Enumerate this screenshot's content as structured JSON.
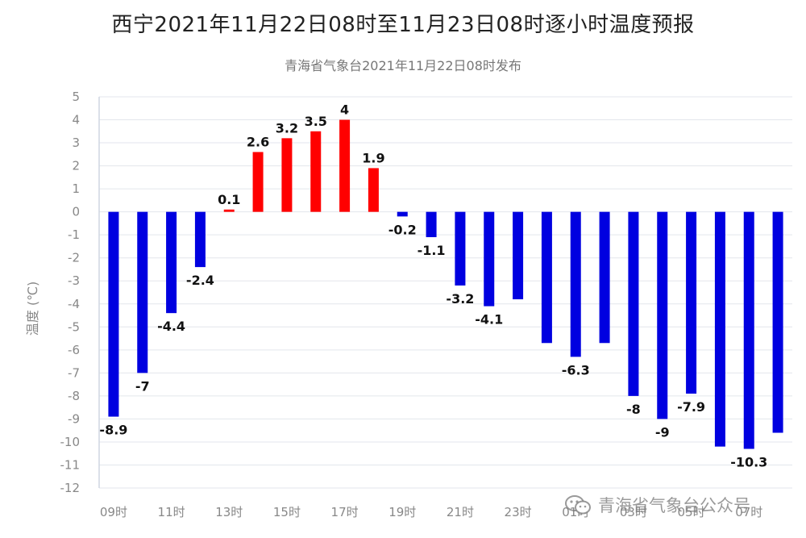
{
  "title": "西宁2021年11月22日08时至11月23日08时逐小时温度预报",
  "subtitle": "青海省气象台2021年11月22日08时发布",
  "watermark": "青海省气象台公众号",
  "chart_data": {
    "type": "bar",
    "title": "西宁2021年11月22日08时至11月23日08时逐小时温度预报",
    "subtitle": "青海省气象台2021年11月22日08时发布",
    "ylabel": "温度 (℃)",
    "xlabel": "",
    "ylim": [
      -12,
      5
    ],
    "yticks": [
      5,
      4,
      3,
      2,
      1,
      0,
      -1,
      -2,
      -3,
      -4,
      -5,
      -6,
      -7,
      -8,
      -9,
      -10,
      -11,
      -12
    ],
    "grid": true,
    "categories": [
      "09时",
      "10时",
      "11时",
      "12时",
      "13时",
      "14时",
      "15时",
      "16时",
      "17时",
      "18时",
      "19时",
      "20时",
      "21时",
      "22时",
      "23时",
      "00时",
      "01时",
      "02时",
      "03时",
      "04时",
      "05时",
      "06时",
      "07时",
      "08时"
    ],
    "xtick_labels": [
      "09时",
      "11时",
      "13时",
      "15时",
      "17时",
      "19时",
      "21时",
      "23时",
      "01时",
      "03时",
      "05时",
      "07时"
    ],
    "values": [
      -8.9,
      -7,
      -4.4,
      -2.4,
      0.1,
      2.6,
      3.2,
      3.5,
      4,
      1.9,
      -0.2,
      -1.1,
      -3.2,
      -4.1,
      -3.8,
      -5.7,
      -6.3,
      -5.7,
      -8,
      -9,
      -7.9,
      -10.2,
      -10.3,
      -9.6
    ],
    "data_labels": [
      "-8.9",
      "-7",
      "-4.4",
      "-2.4",
      "0.1",
      "2.6",
      "3.2",
      "3.5",
      "4",
      "1.9",
      "-0.2",
      "-1.1",
      "-3.2",
      "-4.1",
      "",
      "",
      "-6.3",
      "",
      "-8",
      "-9",
      "-7.9",
      "",
      "-10.3",
      ""
    ],
    "colors": {
      "positive": "#ff0000",
      "negative": "#0000e0",
      "grid": "#e3e6ec",
      "axis_text": "#888888",
      "label_text": "#111111"
    }
  }
}
